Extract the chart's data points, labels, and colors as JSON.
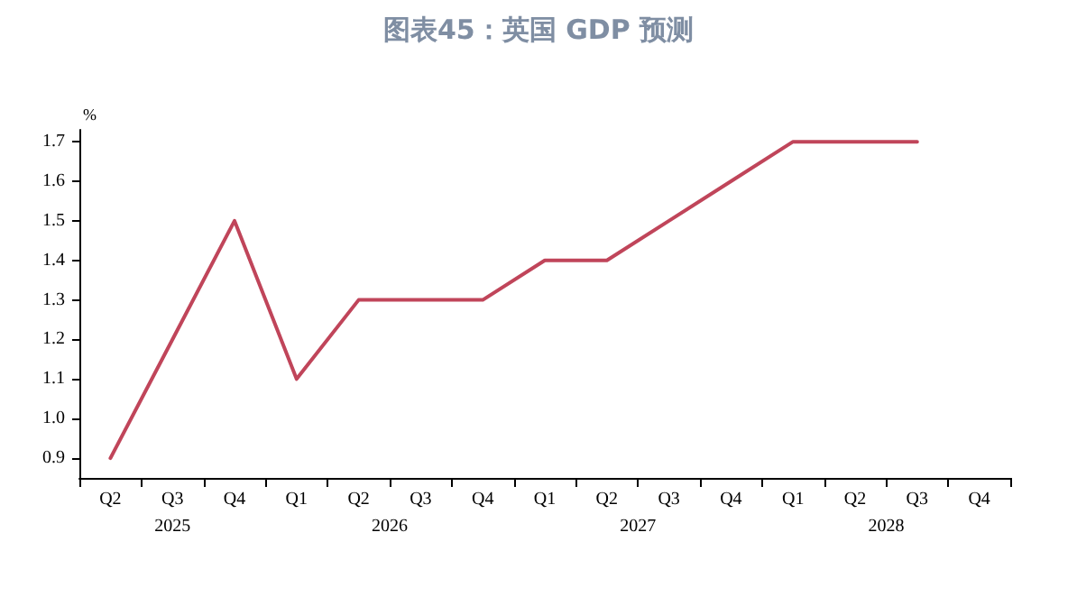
{
  "chart_data": {
    "type": "line",
    "title": "图表45：英国 GDP 预测",
    "ylabel": "%",
    "categories": [
      "Q2",
      "Q3",
      "Q4",
      "Q1",
      "Q2",
      "Q3",
      "Q4",
      "Q1",
      "Q2",
      "Q3",
      "Q4",
      "Q1",
      "Q2",
      "Q3",
      "Q4"
    ],
    "annotations": [
      "2025",
      "2026",
      "2027",
      "2028"
    ],
    "series": [
      {
        "color": "#c0455a",
        "values": [
          0.9,
          1.2,
          1.5,
          1.1,
          1.3,
          1.3,
          1.3,
          1.4,
          1.4,
          1.5,
          1.6,
          1.7,
          1.7,
          1.7,
          null
        ]
      }
    ],
    "ylim": [
      0.85,
      1.73
    ],
    "yticks": [
      0.9,
      {
        "value": 1,
        "label": "1.0"
      },
      1.1,
      1.2,
      1.3,
      1.4,
      1.5,
      1.6,
      1.7
    ],
    "grid": false,
    "marker": "none",
    "line_style": "solid"
  }
}
